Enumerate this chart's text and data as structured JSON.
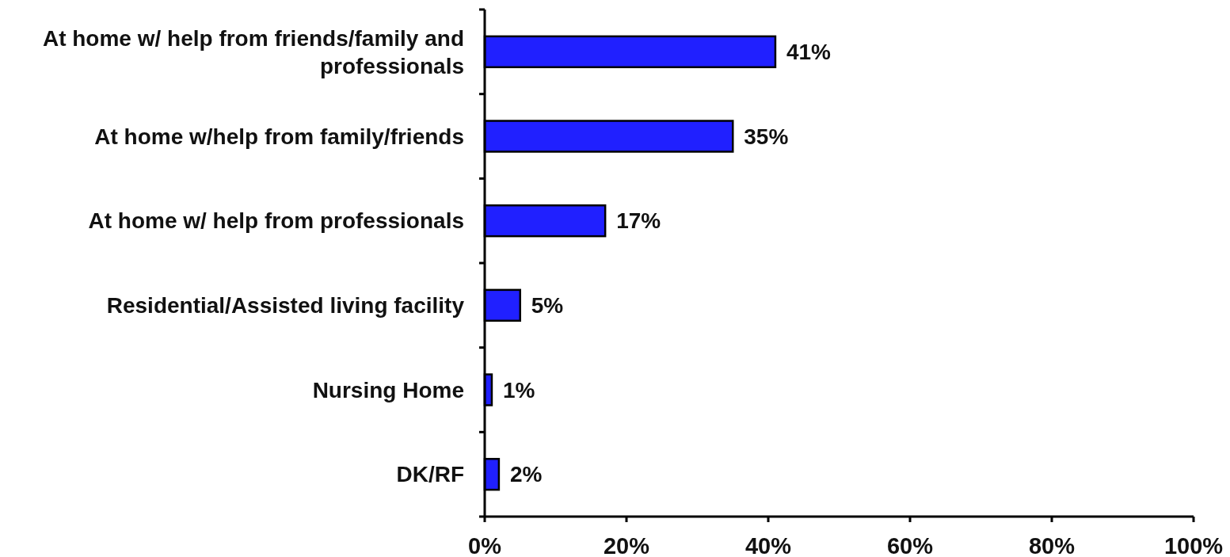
{
  "chart_data": {
    "type": "bar",
    "orientation": "horizontal",
    "categories": [
      "At home w/ help from friends/family and professionals",
      "At home w/help from family/friends",
      "At home w/ help from professionals",
      "Residential/Assisted living facility",
      "Nursing Home",
      "DK/RF"
    ],
    "values": [
      41,
      35,
      17,
      5,
      1,
      2
    ],
    "color": "#2020ff",
    "value_labels": [
      "41%",
      "35%",
      "17%",
      "5%",
      "1%",
      "2%"
    ],
    "xlim": [
      0,
      100
    ],
    "xticks": [
      {
        "value": 0,
        "label": "0%"
      },
      {
        "value": 20,
        "label": "20%"
      },
      {
        "value": 40,
        "label": "40%"
      },
      {
        "value": 60,
        "label": "60%"
      },
      {
        "value": 80,
        "label": "80%"
      },
      {
        "value": 100,
        "label": "100%"
      }
    ]
  }
}
